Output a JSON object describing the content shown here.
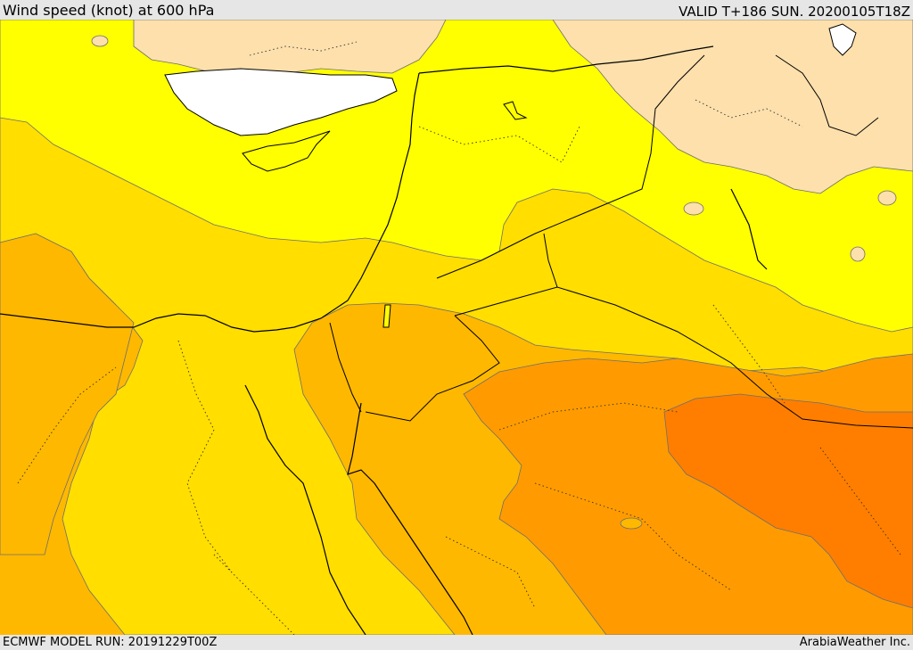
{
  "header": {
    "title": "Wind speed (knot) at 600 hPa",
    "valid": "VALID T+186 SUN. 20200105T18Z"
  },
  "footer": {
    "model_run": "ECMWF MODEL RUN: 20191229T00Z",
    "credit": "ArabiaWeather Inc."
  },
  "colors": {
    "band_1": "#fde0ac",
    "band_2": "#ffff00",
    "band_3": "#ffde00",
    "band_4": "#ffb800",
    "band_5": "#ff9b00",
    "band_6": "#ff7e00",
    "sea_white": "#ffffff",
    "boundary": "#000000",
    "contour": "#6e6e6e"
  }
}
